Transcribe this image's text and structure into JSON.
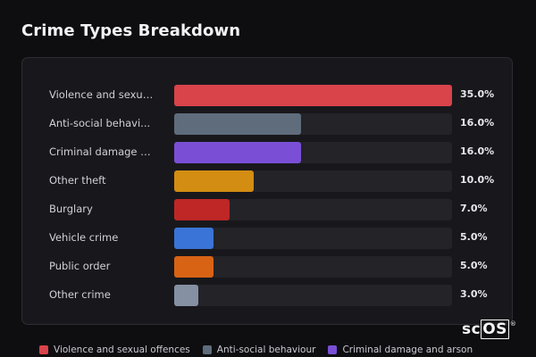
{
  "title": "Crime Types Breakdown",
  "chart_data": {
    "type": "bar",
    "orientation": "horizontal",
    "title": "Crime Types Breakdown",
    "categories": [
      "Violence and sexua...",
      "Anti-social behavi...",
      "Criminal damage an...",
      "Other theft",
      "Burglary",
      "Vehicle crime",
      "Public order",
      "Other crime"
    ],
    "values": [
      35.0,
      16.0,
      16.0,
      10.0,
      7.0,
      5.0,
      5.0,
      3.0
    ],
    "value_labels": [
      "35.0%",
      "16.0%",
      "16.0%",
      "10.0%",
      "7.0%",
      "5.0%",
      "5.0%",
      "3.0%"
    ],
    "colors": [
      "#d9434a",
      "#5f6c7b",
      "#7a4fd6",
      "#d38d12",
      "#bf2626",
      "#3a74d6",
      "#d86314",
      "#8590a3"
    ],
    "xlim": [
      0,
      35
    ],
    "grid": false,
    "legend": {
      "position": "bottom",
      "entries": [
        {
          "label": "Violence and sexual offences",
          "color": "#d9434a"
        },
        {
          "label": "Anti-social behaviour",
          "color": "#5f6c7b"
        },
        {
          "label": "Criminal damage and arson",
          "color": "#7a4fd6"
        }
      ]
    }
  },
  "logo": {
    "text_main": "sc",
    "text_boxed": "OS",
    "mark": "®"
  }
}
